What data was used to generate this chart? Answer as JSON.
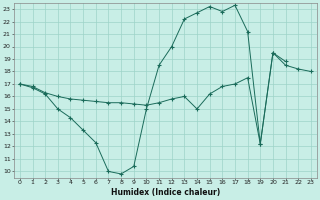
{
  "xlabel": "Humidex (Indice chaleur)",
  "bg_color": "#c8eee6",
  "line_color": "#1a6b5a",
  "grid_color": "#9dd4c8",
  "line1_x": [
    0,
    1,
    2,
    3,
    4,
    5,
    6,
    7,
    8,
    9,
    10,
    11,
    12,
    13,
    14,
    15,
    16,
    17,
    18,
    19,
    20,
    21
  ],
  "line1_y": [
    17.0,
    16.7,
    16.2,
    15.0,
    14.3,
    13.3,
    12.3,
    10.0,
    9.8,
    10.4,
    15.0,
    18.5,
    20.0,
    22.2,
    22.7,
    23.2,
    22.8,
    23.3,
    21.2,
    12.2,
    19.5,
    18.8
  ],
  "line2_x": [
    0,
    1,
    2,
    3,
    4,
    5,
    6,
    7,
    8,
    9,
    10,
    11,
    12,
    13,
    14,
    15,
    16,
    17,
    18,
    19,
    20,
    21,
    22,
    23
  ],
  "line2_y": [
    17.0,
    16.8,
    16.3,
    16.0,
    15.8,
    15.7,
    15.6,
    15.5,
    15.5,
    15.4,
    15.3,
    15.5,
    15.8,
    16.0,
    15.0,
    16.2,
    16.8,
    17.0,
    17.5,
    12.2,
    19.5,
    18.5,
    18.2,
    18.0
  ],
  "xlim": [
    -0.5,
    23.5
  ],
  "ylim": [
    9.5,
    23.5
  ],
  "xticks": [
    0,
    1,
    2,
    3,
    4,
    5,
    6,
    7,
    8,
    9,
    10,
    11,
    12,
    13,
    14,
    15,
    16,
    17,
    18,
    19,
    20,
    21,
    22,
    23
  ],
  "yticks": [
    10,
    11,
    12,
    13,
    14,
    15,
    16,
    17,
    18,
    19,
    20,
    21,
    22,
    23
  ]
}
